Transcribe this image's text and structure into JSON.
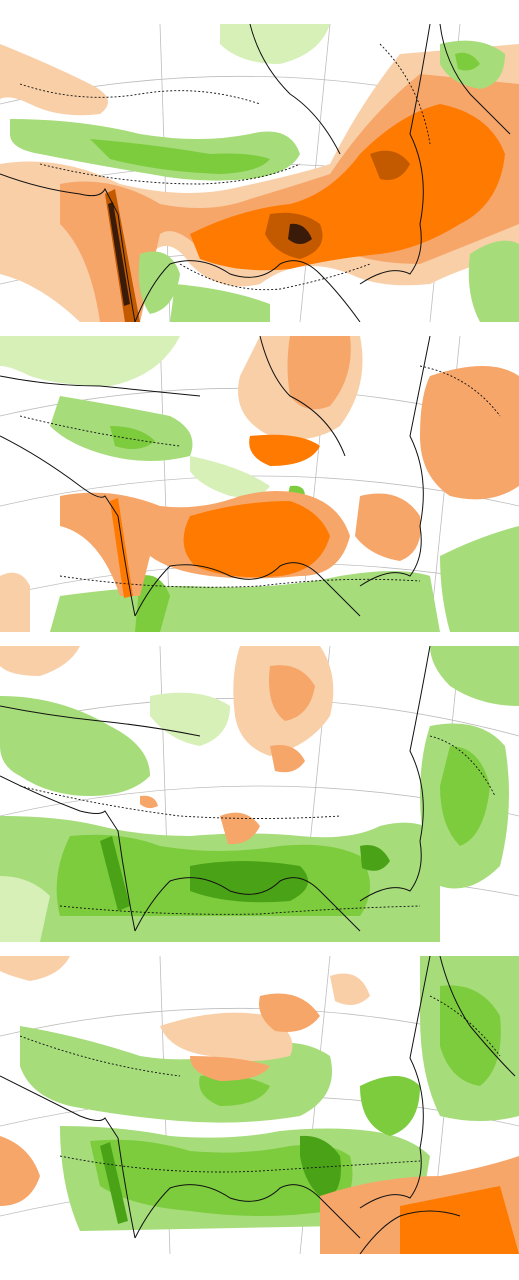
{
  "panels": [
    {
      "id": "panel-1",
      "dominant_anomaly": "dry"
    },
    {
      "id": "panel-2",
      "dominant_anomaly": "mixed"
    },
    {
      "id": "panel-3",
      "dominant_anomaly": "wet"
    },
    {
      "id": "panel-4",
      "dominant_anomaly": "wet"
    }
  ],
  "colors": {
    "dry_strong": "#3a1a08",
    "dry_high": "#c45a00",
    "dry_mid": "#ff7a00",
    "dry_low": "#f7a66a",
    "dry_faint": "#f9cfa8",
    "wet_faint": "#d6f0b8",
    "wet_low": "#a6dc7a",
    "wet_mid": "#7ccc3d",
    "wet_high": "#4aa317",
    "wet_strong": "#2d7a0c",
    "neutral": "#ffffff",
    "coastline": "#111111",
    "grid": "#bdbdbd"
  },
  "legend_text": []
}
